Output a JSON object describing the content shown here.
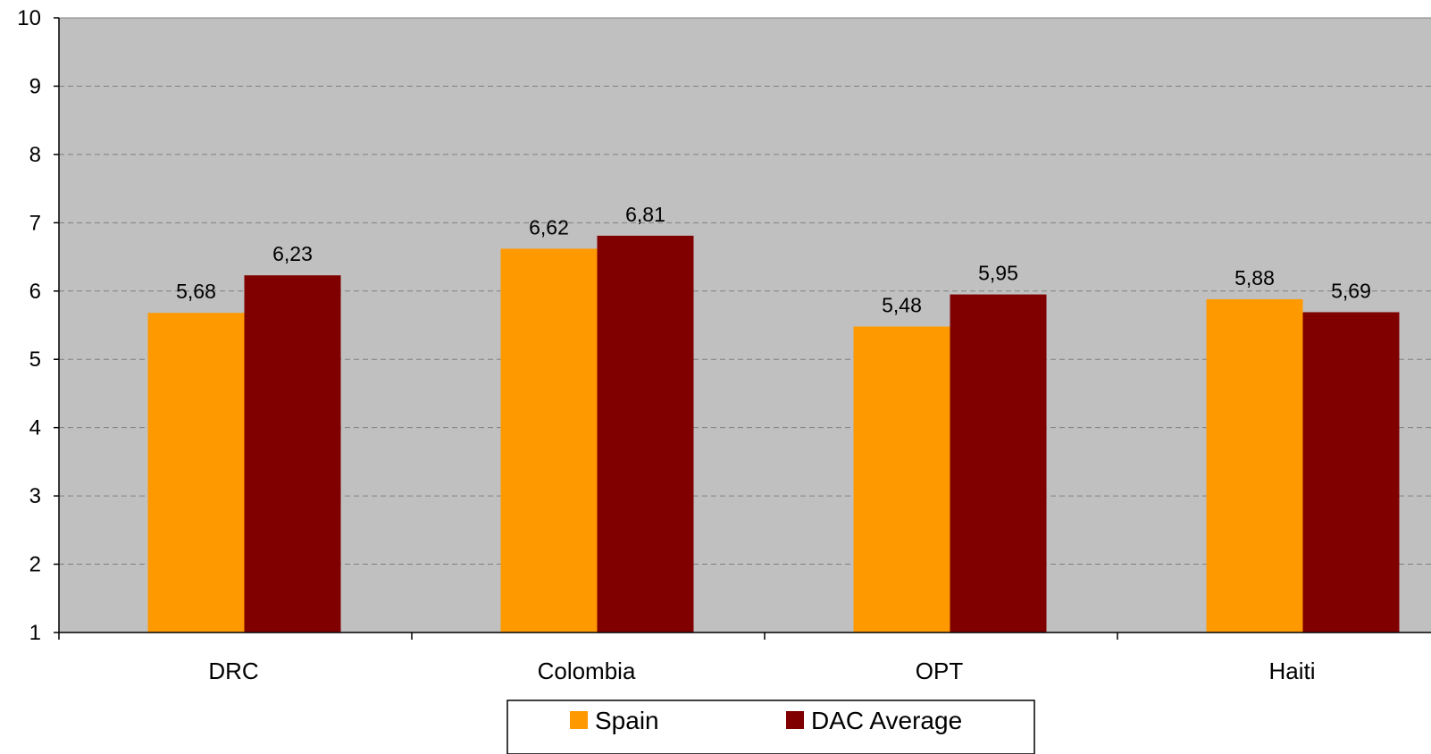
{
  "chart_data": {
    "type": "bar",
    "categories": [
      "DRC",
      "Colombia",
      "OPT",
      "Haiti"
    ],
    "series": [
      {
        "name": "Spain",
        "values": [
          5.68,
          6.62,
          5.48,
          5.88
        ],
        "labels": [
          "5,68",
          "6,62",
          "5,48",
          "5,88"
        ]
      },
      {
        "name": "DAC Average",
        "values": [
          6.23,
          6.81,
          5.95,
          5.69
        ],
        "labels": [
          "6,23",
          "6,81",
          "5,95",
          "5,69"
        ]
      }
    ],
    "ylim": [
      1,
      10
    ],
    "yticks": [
      "1",
      "2",
      "3",
      "4",
      "5",
      "6",
      "7",
      "8",
      "9",
      "10"
    ],
    "title": "",
    "xlabel": "",
    "ylabel": "",
    "grid": true,
    "legend_position": "bottom"
  },
  "colors": {
    "plot_background": "#c0c0c0",
    "series": [
      "#ff9900",
      "#800000"
    ],
    "grid": "#808080",
    "axis": "#000000"
  }
}
